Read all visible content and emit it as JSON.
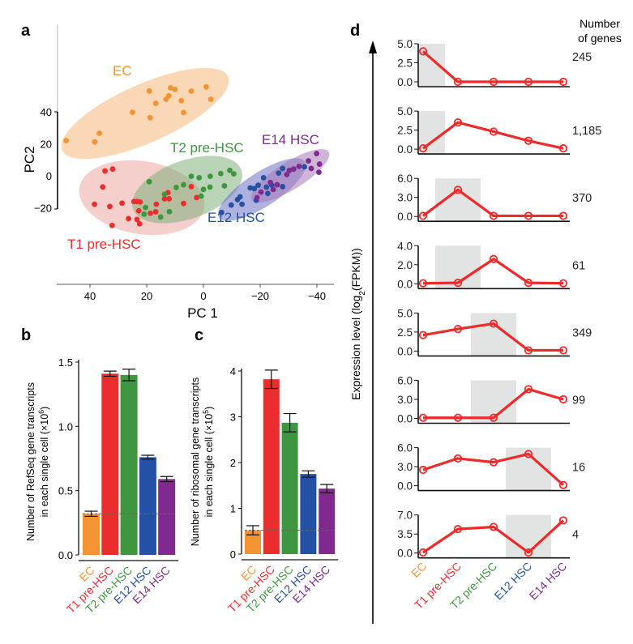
{
  "colors": {
    "EC": "#f39332",
    "T1 pre-HSC": "#ec2d2d",
    "T2 pre-HSC": "#3f9640",
    "E12 HSC": "#2451a3",
    "E14 HSC": "#7e2a8e",
    "line": "#ee2a2a",
    "shade": "#e2e3e3"
  },
  "chart_data": [
    {
      "panel": "a",
      "type": "scatter",
      "xlabel": "PC 1",
      "ylabel": "PC2",
      "xlim": [
        52,
        -46
      ],
      "ylim": [
        -35,
        65
      ],
      "xticks": [
        40,
        20,
        0,
        -20,
        -40
      ],
      "xtick_labels": [
        "40",
        "20",
        "0",
        "−20",
        "−40"
      ],
      "yticks": [
        40,
        20,
        0,
        -20
      ],
      "ytick_labels": [
        "40",
        "20",
        "0",
        "−20"
      ],
      "series": [
        {
          "name": "EC",
          "points": [
            [
              48.4,
              22
            ],
            [
              38.3,
              21.2
            ],
            [
              36.7,
              26.6
            ],
            [
              25,
              39.7
            ],
            [
              18.8,
              36.3
            ],
            [
              19.1,
              53
            ],
            [
              16.8,
              45.3
            ],
            [
              13.2,
              47.8
            ],
            [
              12.2,
              50
            ],
            [
              11.6,
              55
            ],
            [
              10.1,
              54
            ],
            [
              7.8,
              47
            ],
            [
              7,
              39.5
            ],
            [
              4.3,
              52.9
            ],
            [
              -1,
              55.6
            ],
            [
              -2.6,
              47.8
            ]
          ]
        },
        {
          "name": "T1 pre-HSC",
          "points": [
            [
              34.7,
              3
            ],
            [
              32,
              4.2
            ],
            [
              35.5,
              -7
            ],
            [
              38.4,
              -17.8
            ],
            [
              33,
              -19.2
            ],
            [
              28.7,
              -17.1
            ],
            [
              32.2,
              -31
            ],
            [
              26.4,
              -26.8
            ],
            [
              24.5,
              -16.1
            ],
            [
              23.4,
              -16.1
            ],
            [
              22.3,
              -16.4
            ],
            [
              23.4,
              -27.3
            ],
            [
              22.5,
              -30
            ],
            [
              22.8,
              -21.9
            ],
            [
              18.7,
              -23.4
            ],
            [
              16.8,
              -22.5
            ],
            [
              16.6,
              -17.8
            ],
            [
              13.7,
              -14.4
            ],
            [
              12.1,
              -14.4
            ],
            [
              12.5,
              -10.5
            ],
            [
              7,
              -17.3
            ],
            [
              4.3,
              -6.8
            ],
            [
              2.4,
              -13.6
            ]
          ]
        },
        {
          "name": "T2 pre-HSC",
          "points": [
            [
              19.1,
              -3.7
            ],
            [
              20.4,
              -19.8
            ],
            [
              20.9,
              -24
            ],
            [
              15.1,
              -25.8
            ],
            [
              13.7,
              -11.5
            ],
            [
              12,
              -22.4
            ],
            [
              9.6,
              -7.3
            ],
            [
              7,
              -5.6
            ],
            [
              4.3,
              -0.3
            ],
            [
              1.5,
              -1.2
            ],
            [
              0.8,
              -12.7
            ],
            [
              0,
              -8.5
            ],
            [
              -2.3,
              -7.1
            ],
            [
              -2.4,
              -0.3
            ],
            [
              -6.1,
              1.4
            ],
            [
              -7.4,
              -6.3
            ],
            [
              -9.3,
              3.4
            ],
            [
              -10.7,
              1.2
            ]
          ]
        },
        {
          "name": "E12 HSC",
          "points": [
            [
              -6.4,
              -22.9
            ],
            [
              -9.8,
              -18.3
            ],
            [
              -12,
              -14.9
            ],
            [
              -12.9,
              -13.2
            ],
            [
              -13.6,
              -17.8
            ],
            [
              -16.5,
              -7.6
            ],
            [
              -17.9,
              -8
            ],
            [
              -18.6,
              -15.3
            ],
            [
              -19.3,
              -5.9
            ],
            [
              -21.2,
              -1.2
            ],
            [
              -22.2,
              -7.1
            ],
            [
              -22.7,
              -11
            ],
            [
              -24.1,
              -5.9
            ],
            [
              -26.5,
              1.7
            ],
            [
              -27.9,
              4.6
            ],
            [
              -27.9,
              -6.8
            ],
            [
              -35.6,
              5.6
            ]
          ]
        },
        {
          "name": "E14 HSC",
          "points": [
            [
              -18.9,
              -13.6
            ],
            [
              -20.3,
              -10.2
            ],
            [
              -23.6,
              -4.2
            ],
            [
              -24.6,
              -8.5
            ],
            [
              -26,
              -5.6
            ],
            [
              -29.4,
              0.8
            ],
            [
              -30.3,
              3.4
            ],
            [
              -31.8,
              4.2
            ],
            [
              -33.7,
              5.9
            ],
            [
              -37,
              9.3
            ],
            [
              -38,
              4.6
            ],
            [
              -39.9,
              13.9
            ],
            [
              -40.9,
              7.3
            ],
            [
              -40.7,
              2.2
            ]
          ]
        }
      ]
    },
    {
      "panel": "b",
      "type": "bar",
      "categories": [
        "EC",
        "T1 pre-HSC",
        "T2 pre-HSC",
        "E12 HSC",
        "E14 HSC"
      ],
      "values": [
        0.32,
        1.41,
        1.4,
        0.76,
        0.59
      ],
      "errors": [
        0.02,
        0.02,
        0.045,
        0.015,
        0.02
      ],
      "reference_line": 0.32,
      "ylabel_line1": "Number of RefSeq gene transcripts",
      "ylabel_line2": "in each single cell (×10",
      "ylabel_exp": "6",
      "ylabel_close": ")",
      "ylim": [
        0,
        1.5
      ],
      "yticks": [
        0.0,
        0.5,
        1.0,
        1.5
      ],
      "ytick_labels": [
        "0.0",
        "0.5",
        "1.0",
        "1.5"
      ]
    },
    {
      "panel": "c",
      "type": "bar",
      "categories": [
        "EC",
        "T1 pre-HSC",
        "T2 pre-HSC",
        "E12 HSC",
        "E14 HSC"
      ],
      "values": [
        0.52,
        3.82,
        2.87,
        1.75,
        1.43
      ],
      "errors": [
        0.1,
        0.2,
        0.2,
        0.07,
        0.09
      ],
      "reference_line": 0.52,
      "ylabel_line1": "Number of ribosomal gene transcripts",
      "ylabel_line2": "in each single cell (×10",
      "ylabel_exp": "5",
      "ylabel_close": ")",
      "ylim": [
        0,
        4
      ],
      "yticks": [
        0,
        1,
        2,
        3,
        4
      ],
      "ytick_labels": [
        "0",
        "1",
        "2",
        "3",
        "4"
      ]
    },
    {
      "panel": "d",
      "type": "line",
      "categories": [
        "EC",
        "T1 pre-HSC",
        "T2 pre-HSC",
        "E12 HSC",
        "E14 HSC"
      ],
      "ylabel_pre": "Expression level (log",
      "ylabel_sub": "2",
      "ylabel_post": "(FPKM))",
      "genes_header_line1": "Number",
      "genes_header_line2": "of genes",
      "clusters": [
        {
          "genes": "245",
          "highlight": 0,
          "ymax": 5.0,
          "ytick_labels": [
            "0.0",
            "2.5",
            "5.0"
          ],
          "values": [
            4.0,
            0.0,
            0.0,
            0.0,
            0.0
          ]
        },
        {
          "genes": "1,185",
          "highlight": 0,
          "ymax": 5.0,
          "ytick_labels": [
            "0.0",
            "2.5",
            "5.0"
          ],
          "values": [
            0.1,
            3.5,
            2.3,
            1.1,
            0.1
          ]
        },
        {
          "genes": "370",
          "highlight": 1,
          "ymax": 6.0,
          "ytick_labels": [
            "0.0",
            "3.0",
            "6.0"
          ],
          "values": [
            0.1,
            4.2,
            0.1,
            0.1,
            0.1
          ]
        },
        {
          "genes": "61",
          "highlight": 1,
          "ymax": 4.0,
          "ytick_labels": [
            "0.0",
            "2.0",
            "4.0"
          ],
          "values": [
            0.05,
            0.1,
            2.6,
            0.1,
            0.05
          ]
        },
        {
          "genes": "349",
          "highlight": 2,
          "ymax": 5.0,
          "ytick_labels": [
            "0.0",
            "2.5",
            "5.0"
          ],
          "values": [
            2.1,
            2.9,
            3.6,
            0.1,
            0.1
          ]
        },
        {
          "genes": "99",
          "highlight": 2,
          "ymax": 6.0,
          "ytick_labels": [
            "0.0",
            "3.0",
            "6.0"
          ],
          "values": [
            0.1,
            0.1,
            0.1,
            4.6,
            3.0
          ]
        },
        {
          "genes": "16",
          "highlight": 3,
          "ymax": 6.0,
          "ytick_labels": [
            "0.0",
            "3.0",
            "6.0"
          ],
          "values": [
            2.5,
            4.3,
            3.7,
            5.0,
            0.1
          ]
        },
        {
          "genes": "4",
          "highlight": 3,
          "ymax": 7.0,
          "ytick_labels": [
            "0.0",
            "3.5",
            "7.0"
          ],
          "values": [
            0.1,
            4.4,
            4.8,
            0.1,
            6.0
          ]
        }
      ]
    }
  ],
  "panel_labels": {
    "a": "a",
    "b": "b",
    "c": "c",
    "d": "d"
  }
}
